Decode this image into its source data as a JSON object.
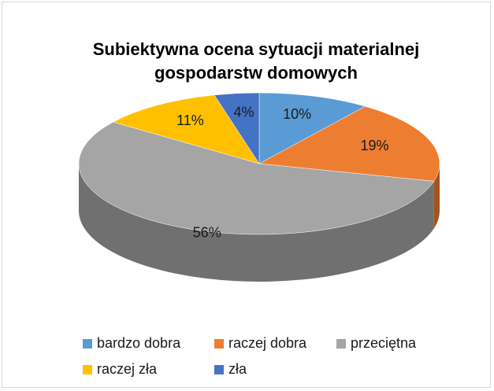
{
  "chart_data": {
    "type": "pie3d",
    "title": "Subiektywna ocena sytuacji materialnej gospodarstw domowych",
    "categories": [
      "bardzo dobra",
      "raczej dobra",
      "przeciętna",
      "raczej zła",
      "zła"
    ],
    "values": [
      10,
      19,
      56,
      11,
      4
    ],
    "value_labels": [
      "10%",
      "19%",
      "56%",
      "11%",
      "4%"
    ],
    "colors": [
      "#5b9bd5",
      "#ed7d31",
      "#a5a5a5",
      "#ffc000",
      "#4472c4"
    ],
    "legend": "bottom"
  }
}
